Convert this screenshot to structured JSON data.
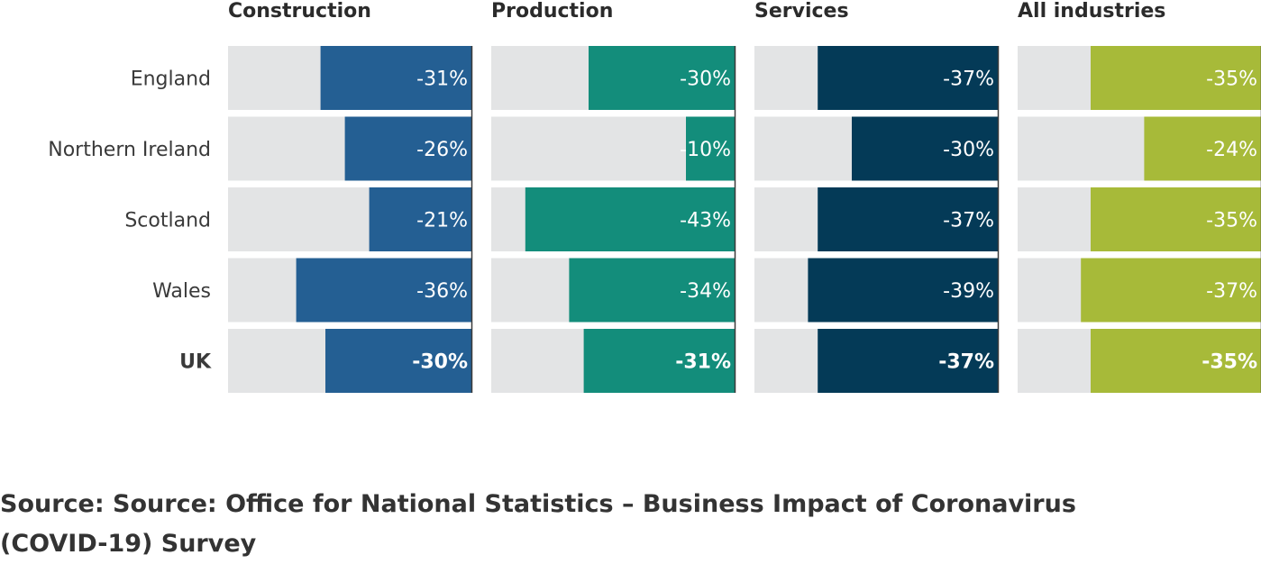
{
  "chart_data": {
    "type": "bar",
    "orientation": "horizontal",
    "categories": [
      "England",
      "Northern Ireland",
      "Scotland",
      "Wales",
      "UK"
    ],
    "bold_categories": [
      "UK"
    ],
    "xlim": [
      -50,
      0
    ],
    "grid": false,
    "panels": [
      {
        "title": "Construction",
        "color": "#245f93",
        "values": [
          -31,
          -26,
          -21,
          -36,
          -30
        ],
        "labels": [
          "-31%",
          "-26%",
          "-21%",
          "-36%",
          "-30%"
        ]
      },
      {
        "title": "Production",
        "color": "#138d7b",
        "values": [
          -30,
          -10,
          -43,
          -34,
          -31
        ],
        "labels": [
          "-30%",
          "-10%",
          "-43%",
          "-34%",
          "-31%"
        ]
      },
      {
        "title": "Services",
        "color": "#043a57",
        "values": [
          -37,
          -30,
          -37,
          -39,
          -37
        ],
        "labels": [
          "-37%",
          "-30%",
          "-37%",
          "-39%",
          "-37%"
        ]
      },
      {
        "title": "All industries",
        "color": "#a7ba39",
        "values": [
          -35,
          -24,
          -35,
          -37,
          -35
        ],
        "labels": [
          "-35%",
          "-24%",
          "-35%",
          "-37%",
          "-35%"
        ]
      }
    ],
    "background_color": "#e3e4e5"
  },
  "source": "Source: Source: Office for National Statistics – Business Impact of Coronavirus (COVID-19) Survey"
}
